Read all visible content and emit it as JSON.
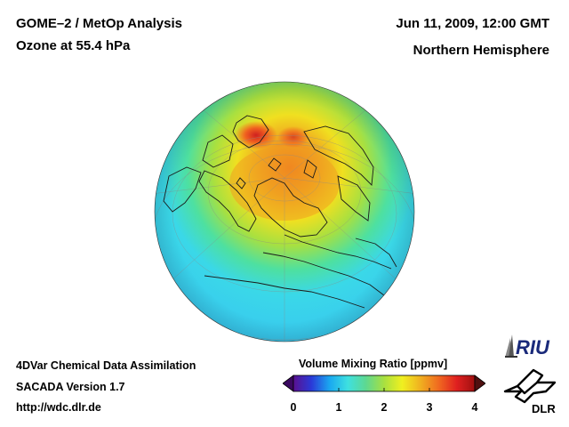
{
  "header": {
    "title_line1": "GOME–2 / MetOp Analysis",
    "title_line2": "Ozone at 55.4 hPa",
    "date": "Jun 11, 2009, 12:00 GMT",
    "region": "Northern Hemisphere"
  },
  "footer": {
    "line1": "4DVar Chemical Data Assimilation",
    "line2": "SACADA Version 1.7",
    "line3": "http://wdc.dlr.de"
  },
  "colorbar": {
    "title": "Volume Mixing Ratio [ppmv]",
    "ticks": [
      "0",
      "1",
      "2",
      "3",
      "4"
    ],
    "min": 0,
    "max": 4,
    "colors": [
      "#5a1090",
      "#2a3ad8",
      "#1aa8f0",
      "#3ee0e0",
      "#5ed890",
      "#a8e040",
      "#f0f020",
      "#f0b020",
      "#f06a20",
      "#e02020",
      "#a01010"
    ]
  },
  "logos": {
    "riu": "RIU",
    "dlr": "DLR"
  },
  "map": {
    "projection": "orthographic",
    "variable": "ozone"
  }
}
